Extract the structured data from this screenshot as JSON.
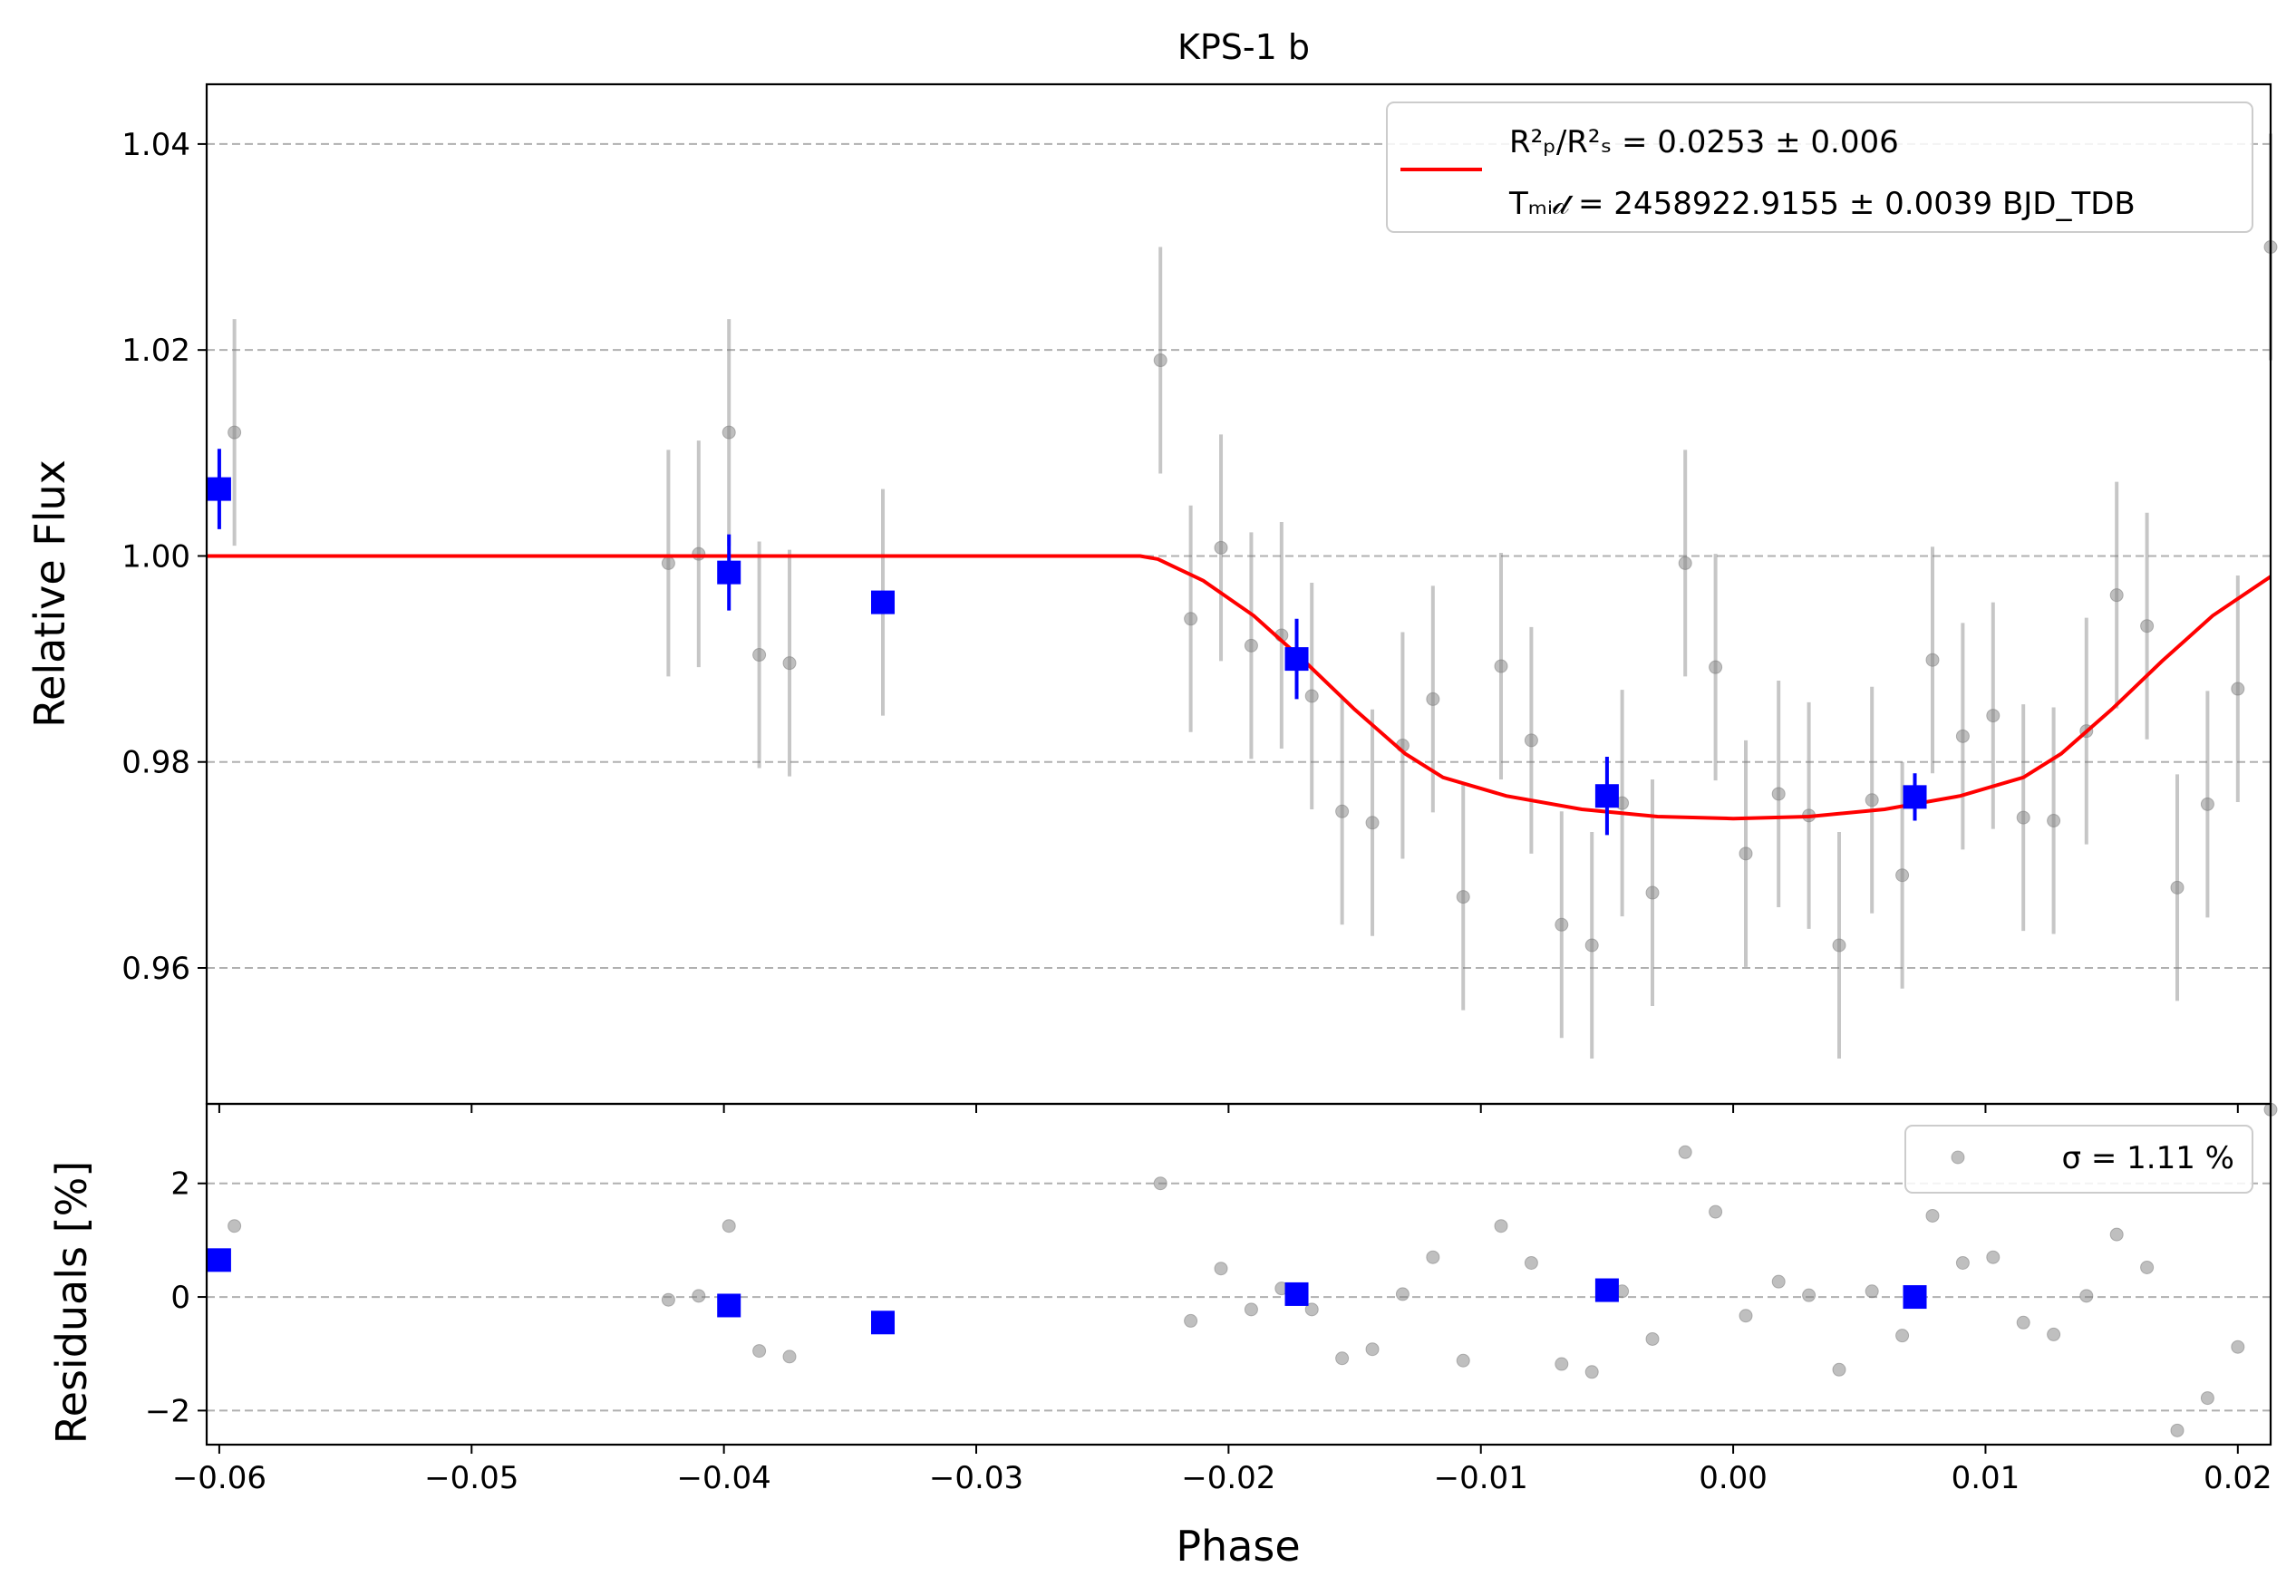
{
  "chart_data": [
    {
      "panel": "main",
      "type": "scatter",
      "title": "KPS-1 b",
      "xlabel": "",
      "ylabel": "Relative Flux",
      "xlim": [
        -0.0605,
        0.0213
      ],
      "ylim": [
        0.9468,
        1.0458
      ],
      "grid": "y-dashed",
      "legend_position": "top-right",
      "x_ticks": [
        -0.06,
        -0.05,
        -0.04,
        -0.03,
        -0.02,
        -0.01,
        0.0,
        0.01,
        0.02
      ],
      "x_tick_labels": [
        "−0.06",
        "−0.05",
        "−0.04",
        "−0.03",
        "−0.02",
        "−0.01",
        "0.00",
        "0.01",
        "0.02"
      ],
      "y_ticks": [
        0.96,
        0.98,
        1.0,
        1.02,
        1.04
      ],
      "y_tick_labels": [
        "0.96",
        "0.98",
        "1.00",
        "1.02",
        "1.04"
      ],
      "legend": {
        "line1": "R²ₚ/R²ₛ = 0.0253 ± 0.006",
        "line2": "Tₘᵢ𝒹 = 2458922.9155 ± 0.0039 BJD_TDB"
      },
      "series": [
        {
          "kind": "raw",
          "color": "#808080",
          "points": [
            [
              -0.0606,
              1.001,
              0.009
            ],
            [
              -0.0594,
              1.012,
              0.011
            ],
            [
              -0.0422,
              0.9993,
              0.011
            ],
            [
              -0.041,
              1.0002,
              0.011
            ],
            [
              -0.0398,
              1.012,
              0.011
            ],
            [
              -0.0386,
              0.9904,
              0.011
            ],
            [
              -0.0374,
              0.9896,
              0.011
            ],
            [
              -0.0337,
              0.9955,
              0.011
            ],
            [
              -0.0227,
              1.019,
              0.011
            ],
            [
              -0.0215,
              0.9939,
              0.011
            ],
            [
              -0.0203,
              1.0008,
              0.011
            ],
            [
              -0.0191,
              0.9913,
              0.011
            ],
            [
              -0.0179,
              0.9923,
              0.011
            ],
            [
              -0.0167,
              0.9864,
              0.011
            ],
            [
              -0.0155,
              0.9752,
              0.011
            ],
            [
              -0.0143,
              0.9741,
              0.011
            ],
            [
              -0.0131,
              0.9816,
              0.011
            ],
            [
              -0.0119,
              0.9861,
              0.011
            ],
            [
              -0.0107,
              0.9669,
              0.011
            ],
            [
              -0.0092,
              0.9893,
              0.011
            ],
            [
              -0.008,
              0.9821,
              0.011
            ],
            [
              -0.0068,
              0.9642,
              0.011
            ],
            [
              -0.0056,
              0.9622,
              0.011
            ],
            [
              -0.0044,
              0.976,
              0.011
            ],
            [
              -0.0032,
              0.9673,
              0.011
            ],
            [
              -0.0019,
              0.9993,
              0.011
            ],
            [
              -0.0007,
              0.9892,
              0.011
            ],
            [
              0.0005,
              0.9711,
              0.011
            ],
            [
              0.0018,
              0.9769,
              0.011
            ],
            [
              0.003,
              0.9748,
              0.011
            ],
            [
              0.0042,
              0.9622,
              0.011
            ],
            [
              0.0055,
              0.9763,
              0.011
            ],
            [
              0.0067,
              0.969,
              0.011
            ],
            [
              0.0079,
              0.9899,
              0.011
            ],
            [
              0.0091,
              0.9825,
              0.011
            ],
            [
              0.0103,
              0.9845,
              0.011
            ],
            [
              0.0115,
              0.9746,
              0.011
            ],
            [
              0.0127,
              0.9743,
              0.011
            ],
            [
              0.014,
              0.983,
              0.011
            ],
            [
              0.0152,
              0.9962,
              0.011
            ],
            [
              0.0164,
              0.9932,
              0.011
            ],
            [
              0.0176,
              0.9678,
              0.011
            ],
            [
              0.0188,
              0.9759,
              0.011
            ],
            [
              0.02,
              0.9871,
              0.011
            ],
            [
              0.0213,
              1.03,
              0.011
            ]
          ]
        },
        {
          "kind": "binned",
          "color": "#0000ff",
          "points": [
            [
              -0.06,
              1.0065,
              0.0039
            ],
            [
              -0.0398,
              0.9984,
              0.0037
            ],
            [
              -0.0337,
              0.9955,
              0.0
            ],
            [
              -0.0173,
              0.99,
              0.0039
            ],
            [
              -0.005,
              0.9767,
              0.0038
            ],
            [
              0.0072,
              0.9766,
              0.0023
            ]
          ]
        },
        {
          "kind": "model",
          "color": "#ff0000",
          "points": [
            [
              -0.0605,
              1.0
            ],
            [
              -0.0235,
              1.0
            ],
            [
              -0.0228,
              0.9997
            ],
            [
              -0.021,
              0.9976
            ],
            [
              -0.019,
              0.9942
            ],
            [
              -0.017,
              0.9898
            ],
            [
              -0.015,
              0.9851
            ],
            [
              -0.013,
              0.9808
            ],
            [
              -0.0115,
              0.9785
            ],
            [
              -0.009,
              0.9767
            ],
            [
              -0.006,
              0.9754
            ],
            [
              -0.003,
              0.9747
            ],
            [
              0.0,
              0.9745
            ],
            [
              0.003,
              0.9747
            ],
            [
              0.006,
              0.9754
            ],
            [
              0.009,
              0.9767
            ],
            [
              0.0115,
              0.9785
            ],
            [
              0.013,
              0.9808
            ],
            [
              0.015,
              0.9851
            ],
            [
              0.017,
              0.9898
            ],
            [
              0.019,
              0.9942
            ],
            [
              0.0213,
              0.998
            ]
          ]
        }
      ]
    },
    {
      "panel": "residuals",
      "type": "scatter",
      "title": "",
      "xlabel": "Phase",
      "ylabel": "Residuals [%]",
      "xlim": [
        -0.0605,
        0.0213
      ],
      "ylim": [
        -2.6,
        3.4
      ],
      "grid": "y-dashed",
      "legend_position": "top-right",
      "y_ticks": [
        -2,
        0,
        2
      ],
      "y_tick_labels": [
        "−2",
        "0",
        "2"
      ],
      "legend": {
        "label": "σ = 1.11 %"
      },
      "series": [
        {
          "kind": "raw",
          "color": "#808080",
          "points": [
            [
              -0.0606,
              0.1
            ],
            [
              -0.0594,
              1.25
            ],
            [
              -0.0422,
              -0.05
            ],
            [
              -0.041,
              0.02
            ],
            [
              -0.0398,
              1.25
            ],
            [
              -0.0386,
              -0.95
            ],
            [
              -0.0374,
              -1.05
            ],
            [
              -0.0227,
              2.0
            ],
            [
              -0.0215,
              -0.42
            ],
            [
              -0.0203,
              0.5
            ],
            [
              -0.0191,
              -0.22
            ],
            [
              -0.0179,
              0.15
            ],
            [
              -0.0167,
              -0.22
            ],
            [
              -0.0155,
              -1.08
            ],
            [
              -0.0143,
              -0.92
            ],
            [
              -0.0131,
              0.05
            ],
            [
              -0.0119,
              0.7
            ],
            [
              -0.0107,
              -1.12
            ],
            [
              -0.0092,
              1.25
            ],
            [
              -0.008,
              0.6
            ],
            [
              -0.0068,
              -1.18
            ],
            [
              -0.0056,
              -1.32
            ],
            [
              -0.0044,
              0.1
            ],
            [
              -0.0032,
              -0.74
            ],
            [
              -0.0019,
              2.55
            ],
            [
              -0.0007,
              1.5
            ],
            [
              0.0005,
              -0.33
            ],
            [
              0.0018,
              0.27
            ],
            [
              0.003,
              0.03
            ],
            [
              0.0042,
              -1.28
            ],
            [
              0.0055,
              0.1
            ],
            [
              0.0067,
              -0.68
            ],
            [
              0.0079,
              1.43
            ],
            [
              0.0091,
              0.6
            ],
            [
              0.0103,
              0.7
            ],
            [
              0.0115,
              -0.45
            ],
            [
              0.0127,
              -0.66
            ],
            [
              0.014,
              0.02
            ],
            [
              0.0152,
              1.1
            ],
            [
              0.0164,
              0.52
            ],
            [
              0.0176,
              -2.35
            ],
            [
              0.0188,
              -1.78
            ],
            [
              0.02,
              -0.88
            ],
            [
              0.0213,
              3.3
            ]
          ]
        },
        {
          "kind": "binned",
          "color": "#0000ff",
          "points": [
            [
              -0.06,
              0.65
            ],
            [
              -0.0398,
              -0.15
            ],
            [
              -0.0337,
              -0.45
            ],
            [
              -0.0173,
              0.05
            ],
            [
              -0.005,
              0.12
            ],
            [
              0.0072,
              0.0
            ]
          ]
        }
      ]
    }
  ]
}
